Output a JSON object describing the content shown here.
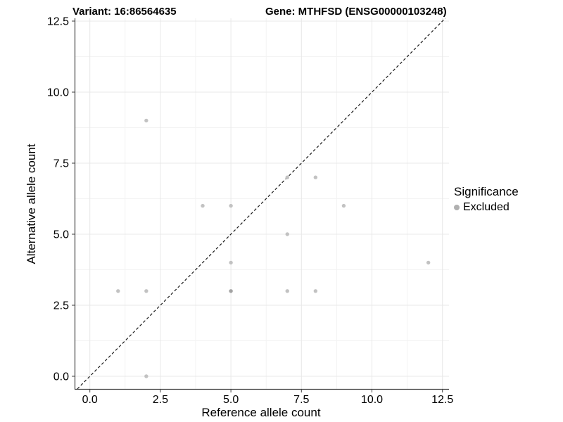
{
  "chart_data": {
    "type": "scatter",
    "titles": {
      "left": "Variant: 16:86564635",
      "right": "Gene: MTHFSD (ENSG00000103248)"
    },
    "xlabel": "Reference allele count",
    "ylabel": "Alternative allele count",
    "xlim": [
      0,
      12.5
    ],
    "ylim": [
      0,
      12.5
    ],
    "ticks": {
      "labels": [
        "0.0",
        "2.5",
        "5.0",
        "7.5",
        "10.0",
        "12.5"
      ],
      "values": [
        0,
        2.5,
        5,
        7.5,
        10,
        12.5
      ],
      "minor": [
        1.25,
        3.75,
        6.25,
        8.75,
        11.25
      ]
    },
    "grid": true,
    "identity_line": {
      "equation": "y = x",
      "style": "dashed",
      "color": "#1a1a1a"
    },
    "legend_position": "right",
    "legend": {
      "title": "Significance",
      "items": [
        {
          "label": "Excluded",
          "marker": "circle",
          "marker_color": "#b0b0b0"
        }
      ]
    },
    "series": [
      {
        "name": "Excluded",
        "points": [
          {
            "x": 2,
            "y": 9
          },
          {
            "x": 7,
            "y": 7
          },
          {
            "x": 8,
            "y": 7
          },
          {
            "x": 4,
            "y": 6
          },
          {
            "x": 5,
            "y": 6
          },
          {
            "x": 9,
            "y": 6
          },
          {
            "x": 7,
            "y": 5
          },
          {
            "x": 5,
            "y": 4
          },
          {
            "x": 12,
            "y": 4
          },
          {
            "x": 1,
            "y": 3
          },
          {
            "x": 2,
            "y": 3
          },
          {
            "x": 5,
            "y": 3,
            "overlap": 2
          },
          {
            "x": 7,
            "y": 3
          },
          {
            "x": 8,
            "y": 3
          },
          {
            "x": 2,
            "y": 0
          }
        ]
      }
    ],
    "colors": {
      "point": "#c2c2c2",
      "point_overlap": "#a3a3a3",
      "grid_major": "#e8e8e8",
      "grid_minor": "#f3f3f3",
      "axis_line": "#404040",
      "tick_mark": "#404040",
      "text": "#000000",
      "background": "#ffffff"
    }
  }
}
